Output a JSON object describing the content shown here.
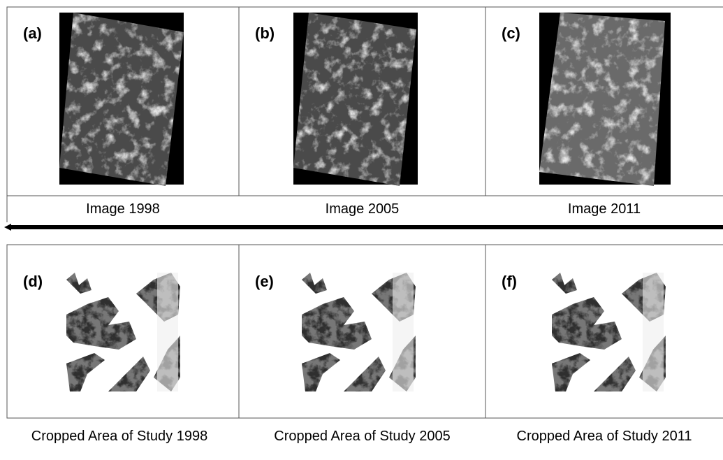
{
  "top_row": {
    "panels": [
      {
        "label": "(a)",
        "caption": "Image 1998"
      },
      {
        "label": "(b)",
        "caption": "Image 2005"
      },
      {
        "label": "(c)",
        "caption": "Image 2011"
      }
    ]
  },
  "bottom_row": {
    "panels": [
      {
        "label": "(d)",
        "caption": "Cropped Area of Study 1998"
      },
      {
        "label": "(e)",
        "caption": "Cropped Area of Study 2005"
      },
      {
        "label": "(f)",
        "caption": "Cropped Area of Study 2011"
      }
    ]
  }
}
